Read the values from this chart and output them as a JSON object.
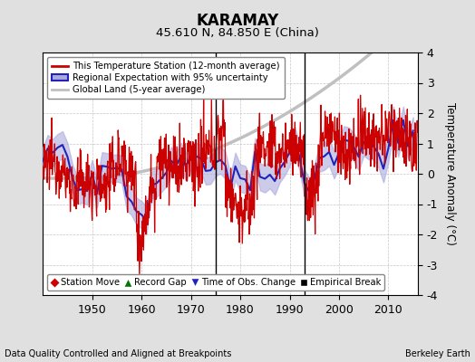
{
  "title": "KARAMAY",
  "subtitle": "45.610 N, 84.850 E (China)",
  "ylabel": "Temperature Anomaly (°C)",
  "xlabel_left": "Data Quality Controlled and Aligned at Breakpoints",
  "xlabel_right": "Berkeley Earth",
  "ylim": [
    -4,
    4
  ],
  "xlim": [
    1940,
    2016
  ],
  "xticks": [
    1950,
    1960,
    1970,
    1980,
    1990,
    2000,
    2010
  ],
  "yticks": [
    -4,
    -3,
    -2,
    -1,
    0,
    1,
    2,
    3,
    4
  ],
  "grid_color": "#b8b8b8",
  "background_color": "#e0e0e0",
  "plot_bg_color": "#ffffff",
  "red_line_color": "#cc0000",
  "blue_line_color": "#2222bb",
  "blue_fill_color": "#aaaadd",
  "grey_line_color": "#c0c0c0",
  "empirical_break_years": [
    1975,
    1993
  ],
  "empirical_break_y": -3.5,
  "legend_items": [
    {
      "label": "This Temperature Station (12-month average)",
      "color": "#cc0000",
      "lw": 2
    },
    {
      "label": "Regional Expectation with 95% uncertainty",
      "color": "#2222bb",
      "lw": 2
    },
    {
      "label": "Global Land (5-year average)",
      "color": "#c0c0c0",
      "lw": 2
    }
  ],
  "legend2_items": [
    {
      "label": "Station Move",
      "marker": "D",
      "color": "#cc0000"
    },
    {
      "label": "Record Gap",
      "marker": "^",
      "color": "#007700"
    },
    {
      "label": "Time of Obs. Change",
      "marker": "v",
      "color": "#2222bb"
    },
    {
      "label": "Empirical Break",
      "marker": "s",
      "color": "#000000"
    }
  ]
}
